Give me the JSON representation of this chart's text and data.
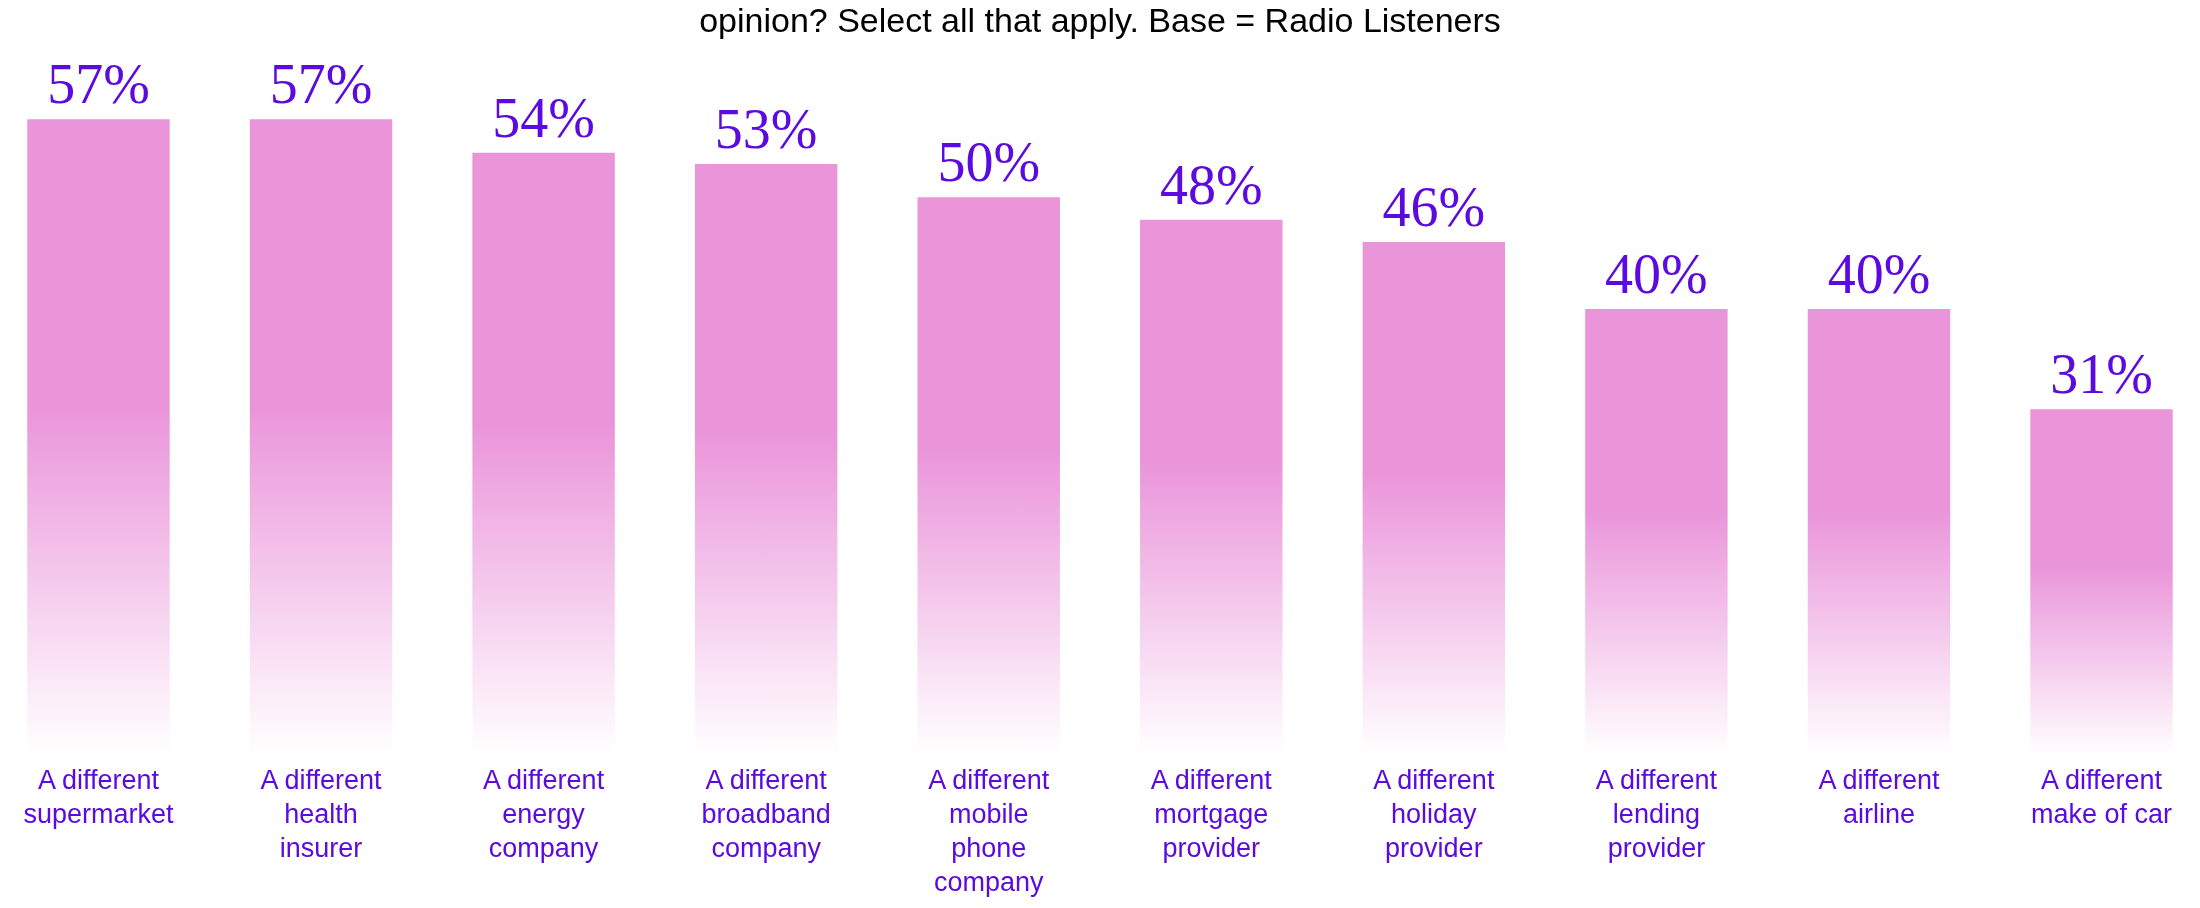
{
  "chart_data": {
    "type": "bar",
    "title": "opinion? Select all that apply. Base = Radio Listeners",
    "categories": [
      "A different supermarket",
      "A different health insurer",
      "A different energy company",
      "A different broadband company",
      "A different mobile phone company",
      "A different mortgage provider",
      "A different holiday provider",
      "A different lending provider",
      "A different airline",
      "A different make of car"
    ],
    "series": [
      {
        "color": "#ea94da",
        "values": [
          57,
          57,
          54,
          53,
          50,
          48,
          46,
          40,
          40,
          31
        ],
        "value_labels": [
          "57%",
          "57%",
          "54%",
          "53%",
          "50%",
          "48%",
          "46%",
          "40%",
          "40%",
          "31%"
        ]
      }
    ],
    "grid": false,
    "tick_labels": "x"
  }
}
